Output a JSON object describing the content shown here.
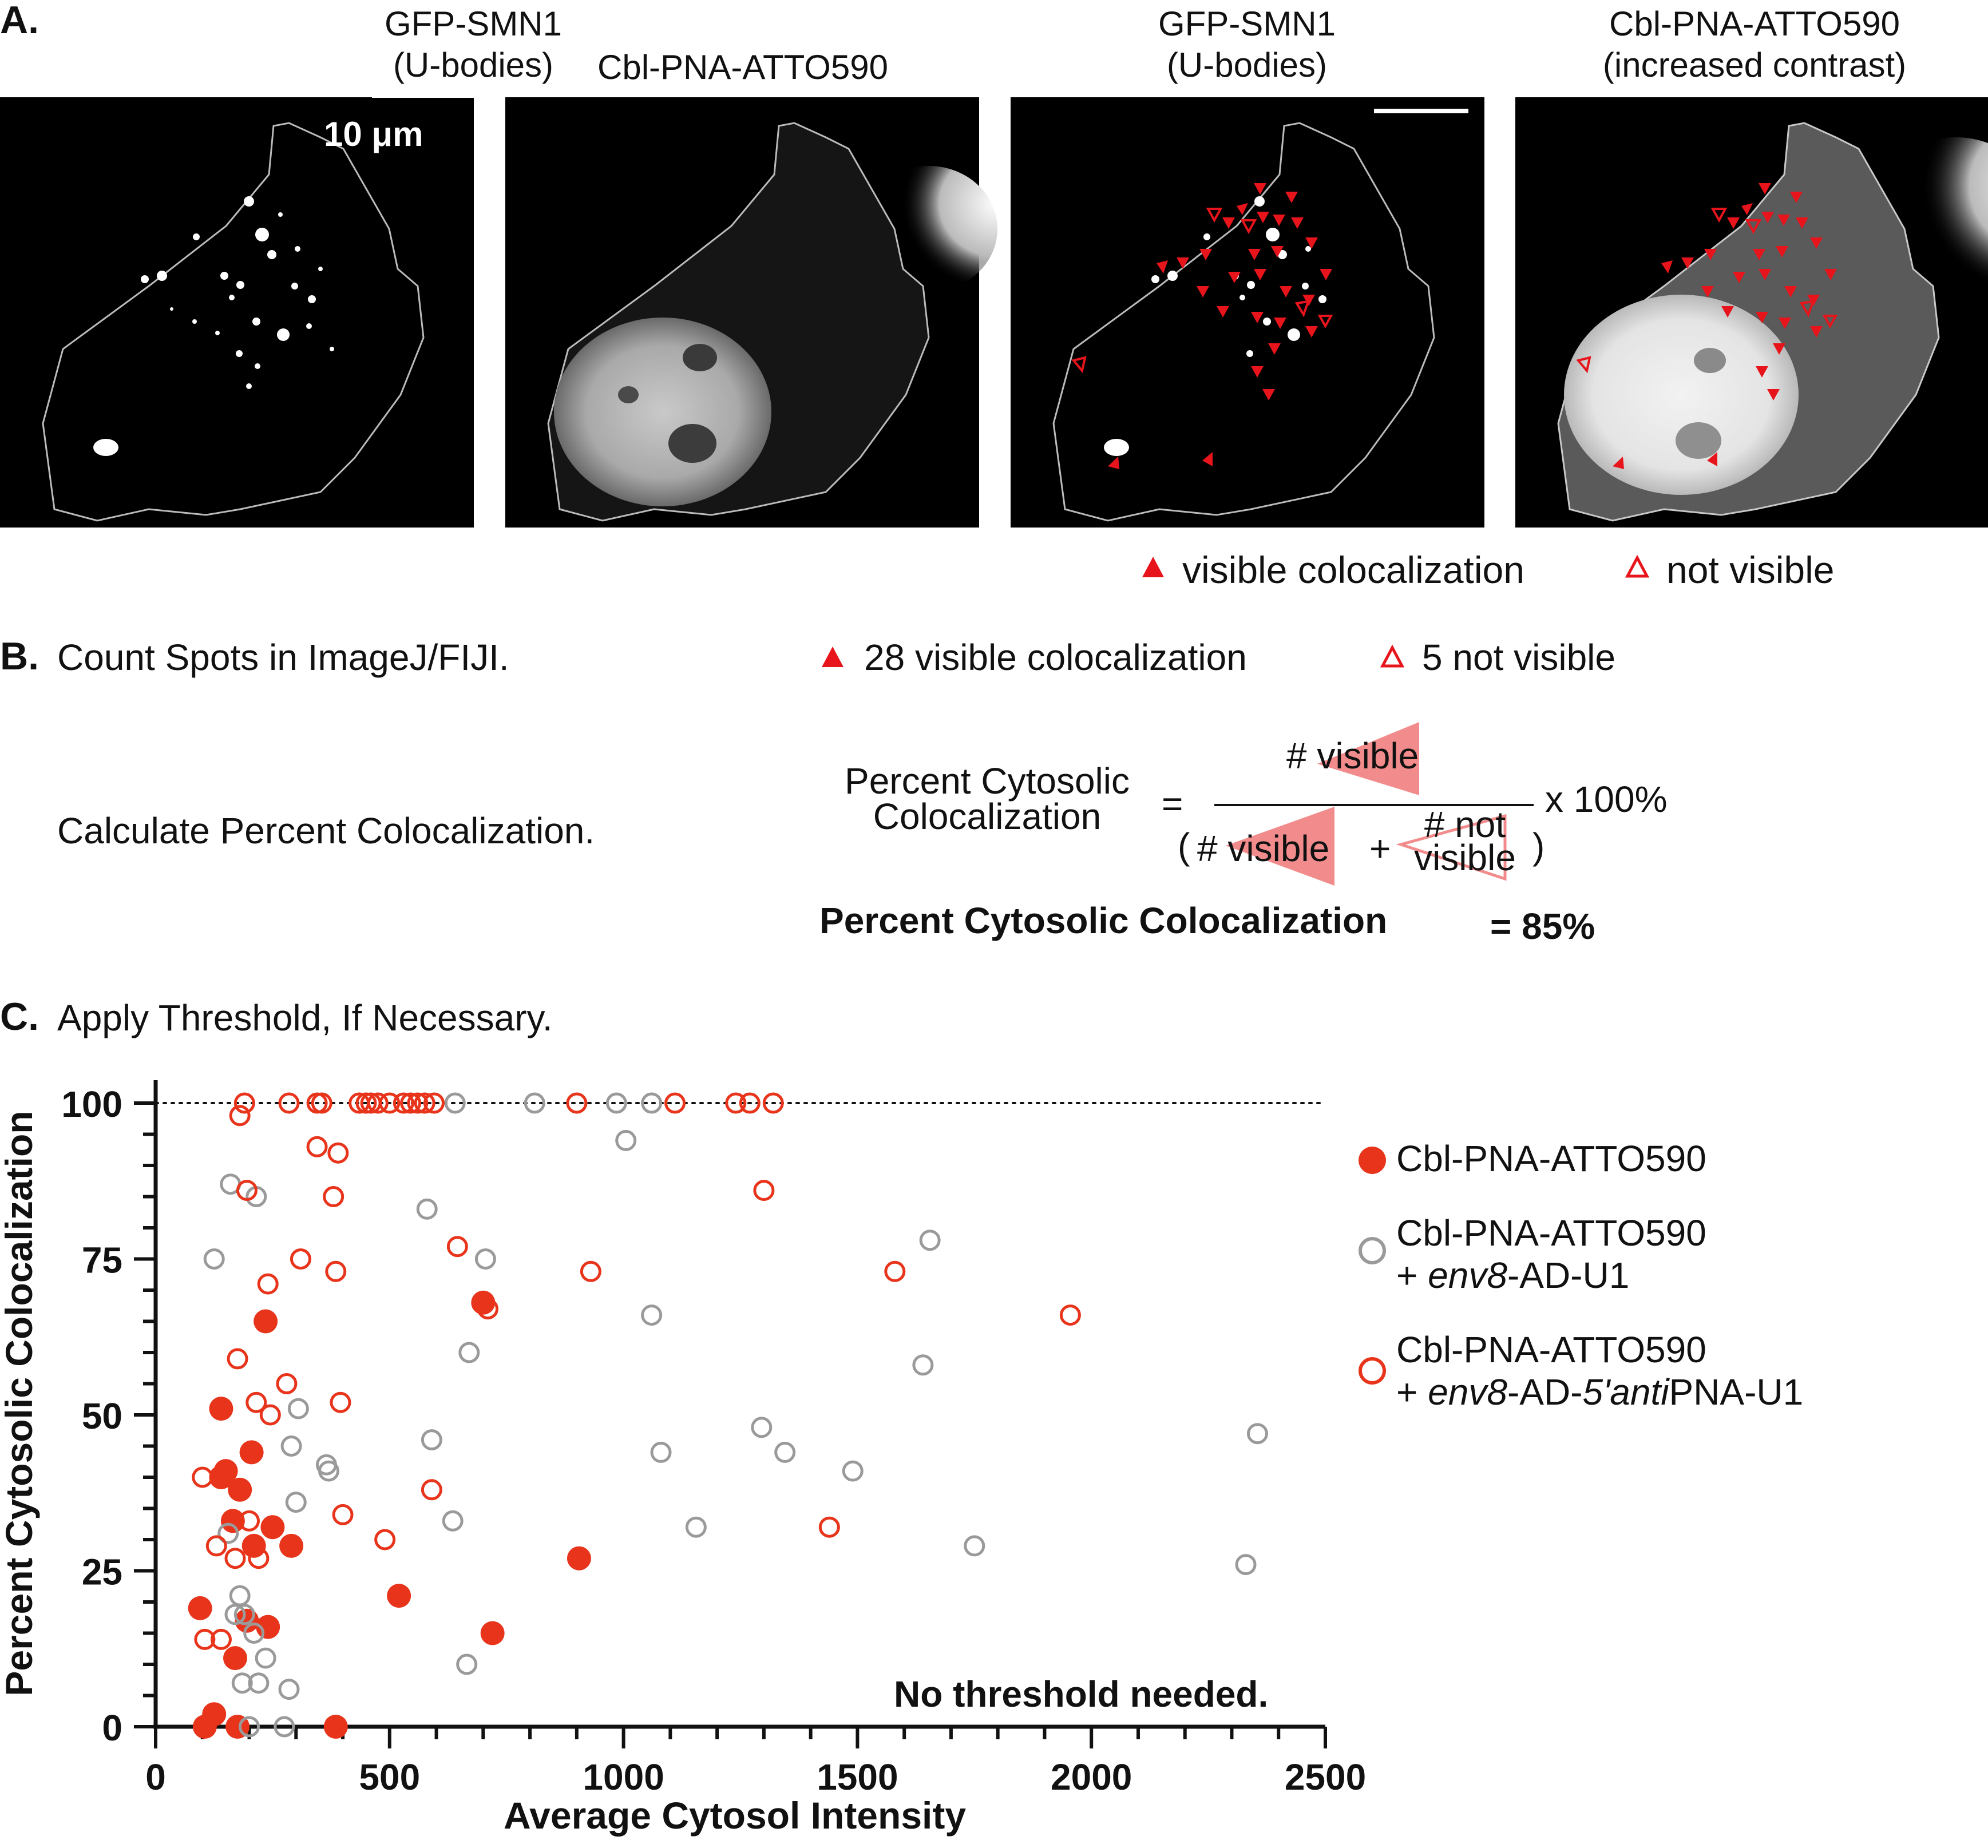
{
  "panel_a": {
    "letter": "A.",
    "images": [
      {
        "title_line1": "GFP-SMN1",
        "title_line2": "(U-bodies)",
        "channel": "gfp"
      },
      {
        "title_line1": "Cbl-PNA-ATTO590",
        "title_line2": "",
        "channel": "atto"
      },
      {
        "title_line1": "GFP-SMN1",
        "title_line2": "(U-bodies)",
        "channel": "gfp-annotated"
      },
      {
        "title_line1": "Cbl-PNA-ATTO590",
        "title_line2": "(increased contrast)",
        "channel": "atto-annotated"
      }
    ],
    "scale_bar_label": "10 μm",
    "legend": {
      "filled": "visible colocalization",
      "open": "not visible"
    },
    "colors": {
      "marker": "#e8141b",
      "outline": "#b8b8b8"
    }
  },
  "panel_b": {
    "letter": "B.",
    "step1": "Count Spots in ImageJ/FIJI.",
    "count_visible": "28 visible colocalization",
    "count_not_visible": "5 not visible",
    "step2": "Calculate Percent Colocalization.",
    "formula": {
      "lhs_line1": "Percent Cytosolic",
      "lhs_line2": "Colocalization",
      "equals": "=",
      "numerator": "# visible",
      "den_open": "(",
      "den_visible": "# visible",
      "den_plus": "+",
      "den_not_line1": "# not",
      "den_not_line2": "visible",
      "den_close": ")",
      "times": "x 100%"
    },
    "result_label": "Percent Cytosolic Colocalization",
    "result_value": "= 85%"
  },
  "panel_c": {
    "letter": "C.",
    "heading": "Apply Threshold, If Necessary.",
    "annotation": "No threshold needed."
  },
  "chart_data": {
    "type": "scatter",
    "xlabel": "Average Cytosol Intensity",
    "ylabel": "Percent Cytosolic Colocalization",
    "xlim": [
      0,
      2500
    ],
    "ylim": [
      0,
      100
    ],
    "xticks": [
      0,
      500,
      1000,
      1500,
      2000,
      2500
    ],
    "yticks": [
      0,
      25,
      50,
      75,
      100
    ],
    "reference_line_y": 100,
    "legend_position": "right",
    "series": [
      {
        "name": "Cbl-PNA-ATTO590",
        "color": "#e8341b",
        "marker": "filled",
        "points": [
          [
            95,
            19
          ],
          [
            105,
            0
          ],
          [
            125,
            2
          ],
          [
            140,
            51
          ],
          [
            150,
            41
          ],
          [
            140,
            40
          ],
          [
            165,
            33
          ],
          [
            170,
            11
          ],
          [
            175,
            0
          ],
          [
            180,
            38
          ],
          [
            195,
            17
          ],
          [
            205,
            44
          ],
          [
            210,
            29
          ],
          [
            235,
            65
          ],
          [
            240,
            16
          ],
          [
            250,
            32
          ],
          [
            290,
            29
          ],
          [
            385,
            0
          ],
          [
            520,
            21
          ],
          [
            700,
            68
          ],
          [
            720,
            15
          ],
          [
            905,
            27
          ]
        ]
      },
      {
        "name": "Cbl-PNA-ATTO590 + env8-AD-U1",
        "color": "#9a9a9a",
        "marker": "open",
        "points": [
          [
            125,
            75
          ],
          [
            155,
            31
          ],
          [
            160,
            87
          ],
          [
            170,
            18
          ],
          [
            180,
            21
          ],
          [
            185,
            7
          ],
          [
            190,
            18
          ],
          [
            200,
            0
          ],
          [
            210,
            15
          ],
          [
            215,
            85
          ],
          [
            220,
            7
          ],
          [
            235,
            11
          ],
          [
            275,
            0
          ],
          [
            285,
            6
          ],
          [
            290,
            45
          ],
          [
            300,
            36
          ],
          [
            305,
            51
          ],
          [
            365,
            42
          ],
          [
            370,
            41
          ],
          [
            580,
            83
          ],
          [
            590,
            46
          ],
          [
            635,
            33
          ],
          [
            640,
            100
          ],
          [
            665,
            10
          ],
          [
            670,
            60
          ],
          [
            705,
            75
          ],
          [
            810,
            100
          ],
          [
            985,
            100
          ],
          [
            1005,
            94
          ],
          [
            1060,
            100
          ],
          [
            1060,
            66
          ],
          [
            1080,
            44
          ],
          [
            1155,
            32
          ],
          [
            1295,
            48
          ],
          [
            1345,
            44
          ],
          [
            1490,
            41
          ],
          [
            1640,
            58
          ],
          [
            1655,
            78
          ],
          [
            1750,
            29
          ],
          [
            2330,
            26
          ],
          [
            2355,
            47
          ]
        ]
      },
      {
        "name": "Cbl-PNA-ATTO590 + env8-AD-5'antiPNA-U1",
        "color": "#e8341b",
        "marker": "open",
        "points": [
          [
            100,
            40
          ],
          [
            105,
            14
          ],
          [
            130,
            29
          ],
          [
            140,
            14
          ],
          [
            170,
            27
          ],
          [
            175,
            59
          ],
          [
            180,
            98
          ],
          [
            190,
            100
          ],
          [
            195,
            86
          ],
          [
            200,
            33
          ],
          [
            215,
            52
          ],
          [
            220,
            27
          ],
          [
            240,
            71
          ],
          [
            245,
            50
          ],
          [
            280,
            55
          ],
          [
            285,
            100
          ],
          [
            310,
            75
          ],
          [
            345,
            93
          ],
          [
            345,
            100
          ],
          [
            355,
            100
          ],
          [
            380,
            85
          ],
          [
            385,
            73
          ],
          [
            390,
            92
          ],
          [
            395,
            52
          ],
          [
            400,
            34
          ],
          [
            435,
            100
          ],
          [
            450,
            100
          ],
          [
            460,
            100
          ],
          [
            475,
            100
          ],
          [
            490,
            30
          ],
          [
            500,
            100
          ],
          [
            530,
            100
          ],
          [
            545,
            100
          ],
          [
            560,
            100
          ],
          [
            575,
            100
          ],
          [
            590,
            38
          ],
          [
            595,
            100
          ],
          [
            645,
            77
          ],
          [
            710,
            67
          ],
          [
            900,
            100
          ],
          [
            930,
            73
          ],
          [
            1110,
            100
          ],
          [
            1240,
            100
          ],
          [
            1270,
            100
          ],
          [
            1300,
            86
          ],
          [
            1320,
            100
          ],
          [
            1440,
            32
          ],
          [
            1580,
            73
          ],
          [
            1955,
            66
          ]
        ]
      }
    ]
  }
}
